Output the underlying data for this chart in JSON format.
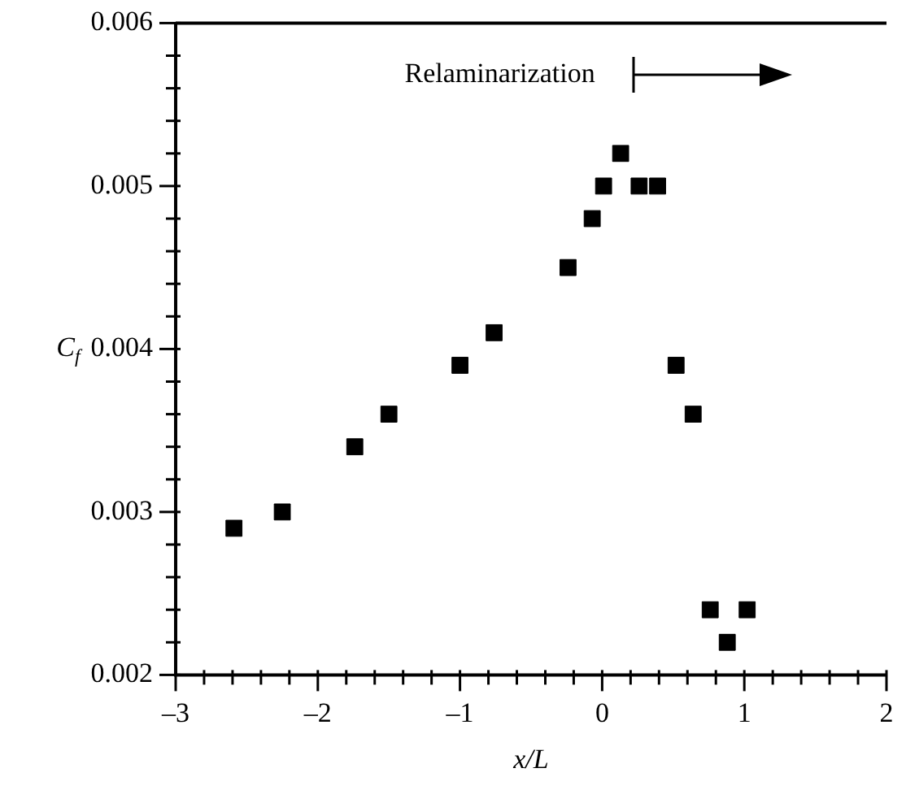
{
  "chart_data": {
    "type": "scatter",
    "xlabel": "x/L",
    "ylabel": "C$_{f}$",
    "annotations": [
      "Relaminarization"
    ],
    "marker": "square",
    "legend": false,
    "xlim": [
      -3,
      2
    ],
    "ylim": [
      0.002,
      0.006
    ],
    "xticks": [
      {
        "value": -3,
        "label": "–3"
      },
      {
        "value": -2.8,
        "label": null
      },
      {
        "value": -2.6,
        "label": null
      },
      {
        "value": -2.4,
        "label": null
      },
      {
        "value": -2.2,
        "label": null
      },
      {
        "value": -2,
        "label": "–2"
      },
      {
        "value": -1.8,
        "label": null
      },
      {
        "value": -1.6,
        "label": null
      },
      {
        "value": -1.4,
        "label": null
      },
      {
        "value": -1.2,
        "label": null
      },
      {
        "value": -1,
        "label": "–1"
      },
      {
        "value": -0.8,
        "label": null
      },
      {
        "value": -0.6,
        "label": null
      },
      {
        "value": -0.4,
        "label": null
      },
      {
        "value": -0.2,
        "label": null
      },
      0,
      {
        "value": 0.2,
        "label": null
      },
      {
        "value": 0.4,
        "label": null
      },
      {
        "value": 0.6,
        "label": null
      },
      {
        "value": 0.8,
        "label": null
      },
      1,
      {
        "value": 1.2,
        "label": null
      },
      {
        "value": 1.4,
        "label": null
      },
      {
        "value": 1.6,
        "label": null
      },
      {
        "value": 1.8,
        "label": null
      },
      2
    ],
    "yticks": [
      0.002,
      {
        "value": 0.0022,
        "label": null
      },
      {
        "value": 0.0024,
        "label": null
      },
      {
        "value": 0.0026,
        "label": null
      },
      {
        "value": 0.0028,
        "label": null
      },
      0.003,
      {
        "value": 0.0032,
        "label": null
      },
      {
        "value": 0.0034,
        "label": null
      },
      {
        "value": 0.0036,
        "label": null
      },
      {
        "value": 0.0038,
        "label": null
      },
      0.004,
      {
        "value": 0.0042,
        "label": null
      },
      {
        "value": 0.0044,
        "label": null
      },
      {
        "value": 0.0046,
        "label": null
      },
      {
        "value": 0.0048,
        "label": null
      },
      0.005,
      {
        "value": 0.0052,
        "label": null
      },
      {
        "value": 0.0054,
        "label": null
      },
      {
        "value": 0.0056,
        "label": null
      },
      {
        "value": 0.0058,
        "label": null
      },
      0.006
    ],
    "series": [
      {
        "color": "#000000",
        "x": [
          -2.59,
          -2.25,
          -1.74,
          -1.5,
          -1.0,
          -0.76,
          -0.24,
          -0.07,
          0.01,
          0.13,
          0.26,
          0.39,
          0.52,
          0.64,
          0.76,
          0.88,
          1.02
        ],
        "values": [
          0.0029,
          0.003,
          0.0034,
          0.0036,
          0.0039,
          0.0041,
          0.0045,
          0.0048,
          0.005,
          0.0052,
          0.005,
          0.005,
          0.0039,
          0.0036,
          0.0024,
          0.0022,
          0.0024
        ]
      }
    ]
  }
}
